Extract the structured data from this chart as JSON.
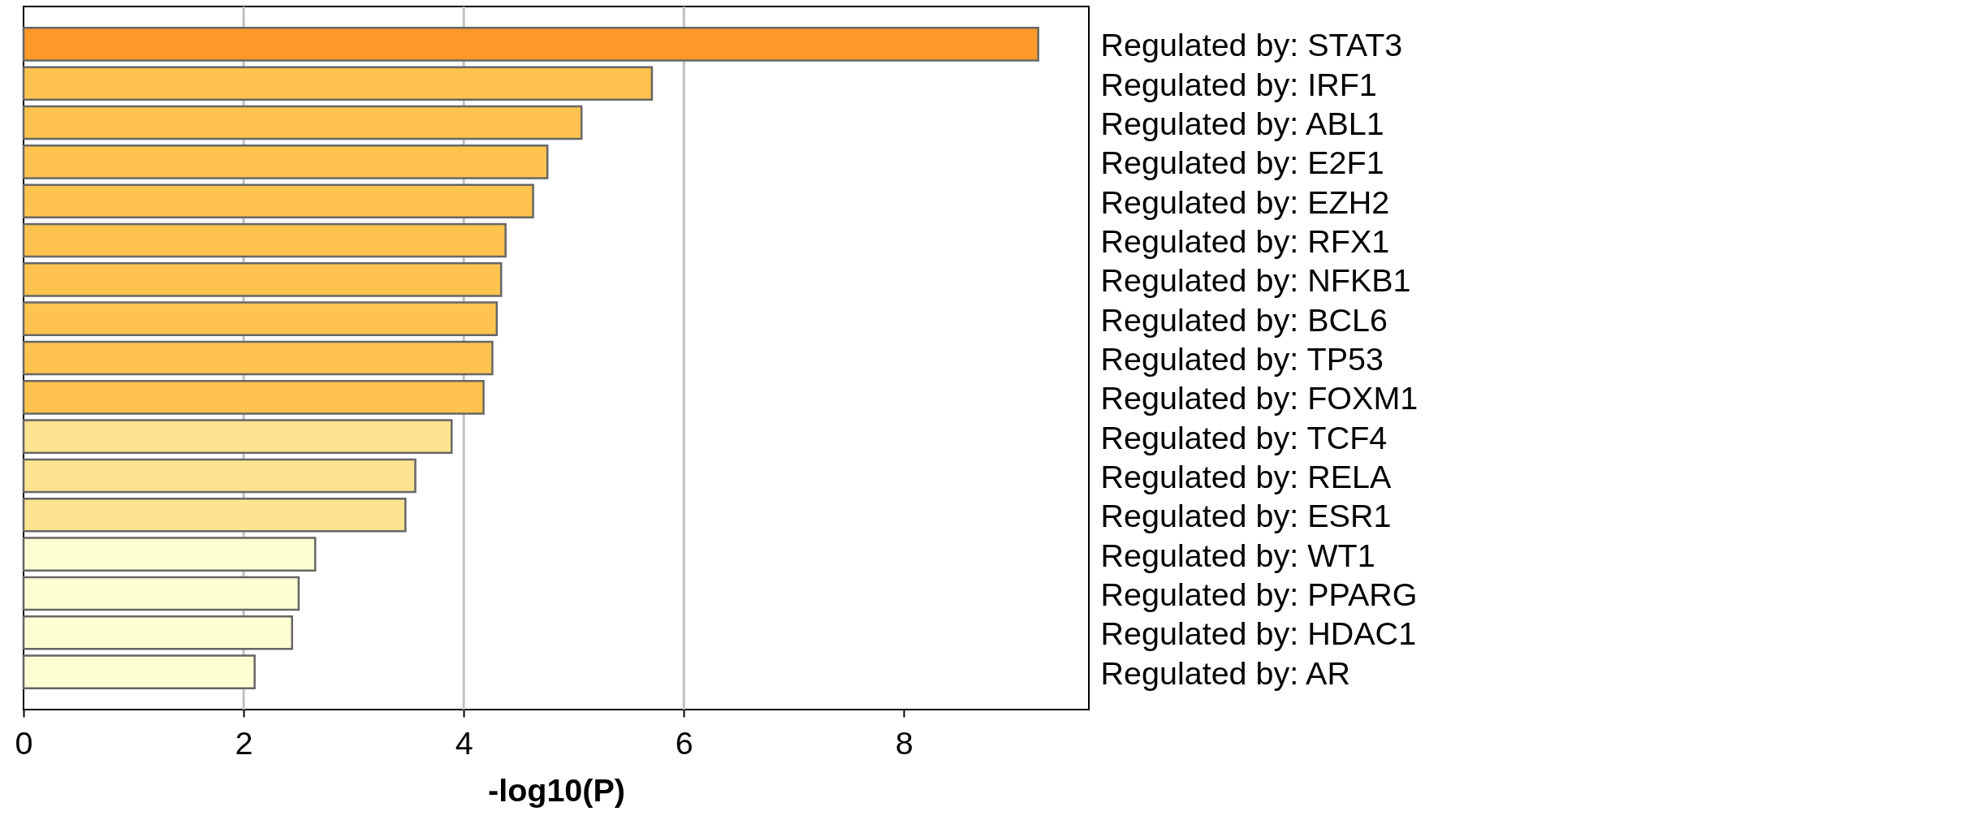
{
  "chart_data": {
    "type": "bar",
    "orientation": "horizontal",
    "categories": [
      "Regulated by: STAT3",
      "Regulated by: IRF1",
      "Regulated by: ABL1",
      "Regulated by: E2F1",
      "Regulated by: EZH2",
      "Regulated by: RFX1",
      "Regulated by: NFKB1",
      "Regulated by: BCL6",
      "Regulated by: TP53",
      "Regulated by: FOXM1",
      "Regulated by: TCF4",
      "Regulated by: RELA",
      "Regulated by: ESR1",
      "Regulated by: WT1",
      "Regulated by: PPARG",
      "Regulated by: HDAC1",
      "Regulated by: AR"
    ],
    "values": [
      9.22,
      5.71,
      5.07,
      4.76,
      4.63,
      4.38,
      4.34,
      4.3,
      4.26,
      4.18,
      3.89,
      3.56,
      3.47,
      2.65,
      2.5,
      2.44,
      2.1
    ],
    "colors": [
      "#fe9929",
      "#fec44f",
      "#fec44f",
      "#fec44f",
      "#fec44f",
      "#fec44f",
      "#fec44f",
      "#fec44f",
      "#fec44f",
      "#fec44f",
      "#fee391",
      "#fee391",
      "#fee391",
      "#ffffd4",
      "#ffffd4",
      "#ffffd4",
      "#ffffd4"
    ],
    "xlabel": "-log10(P)",
    "xlim": [
      0,
      9.68
    ],
    "xticks": [
      0,
      2,
      4,
      6,
      8
    ],
    "ref_lines": [
      {
        "axis": "x",
        "value": 2,
        "color": "#c0c0c0"
      },
      {
        "axis": "x",
        "value": 4,
        "color": "#c0c0c0"
      },
      {
        "axis": "x",
        "value": 6,
        "color": "#c0c0c0"
      }
    ]
  }
}
